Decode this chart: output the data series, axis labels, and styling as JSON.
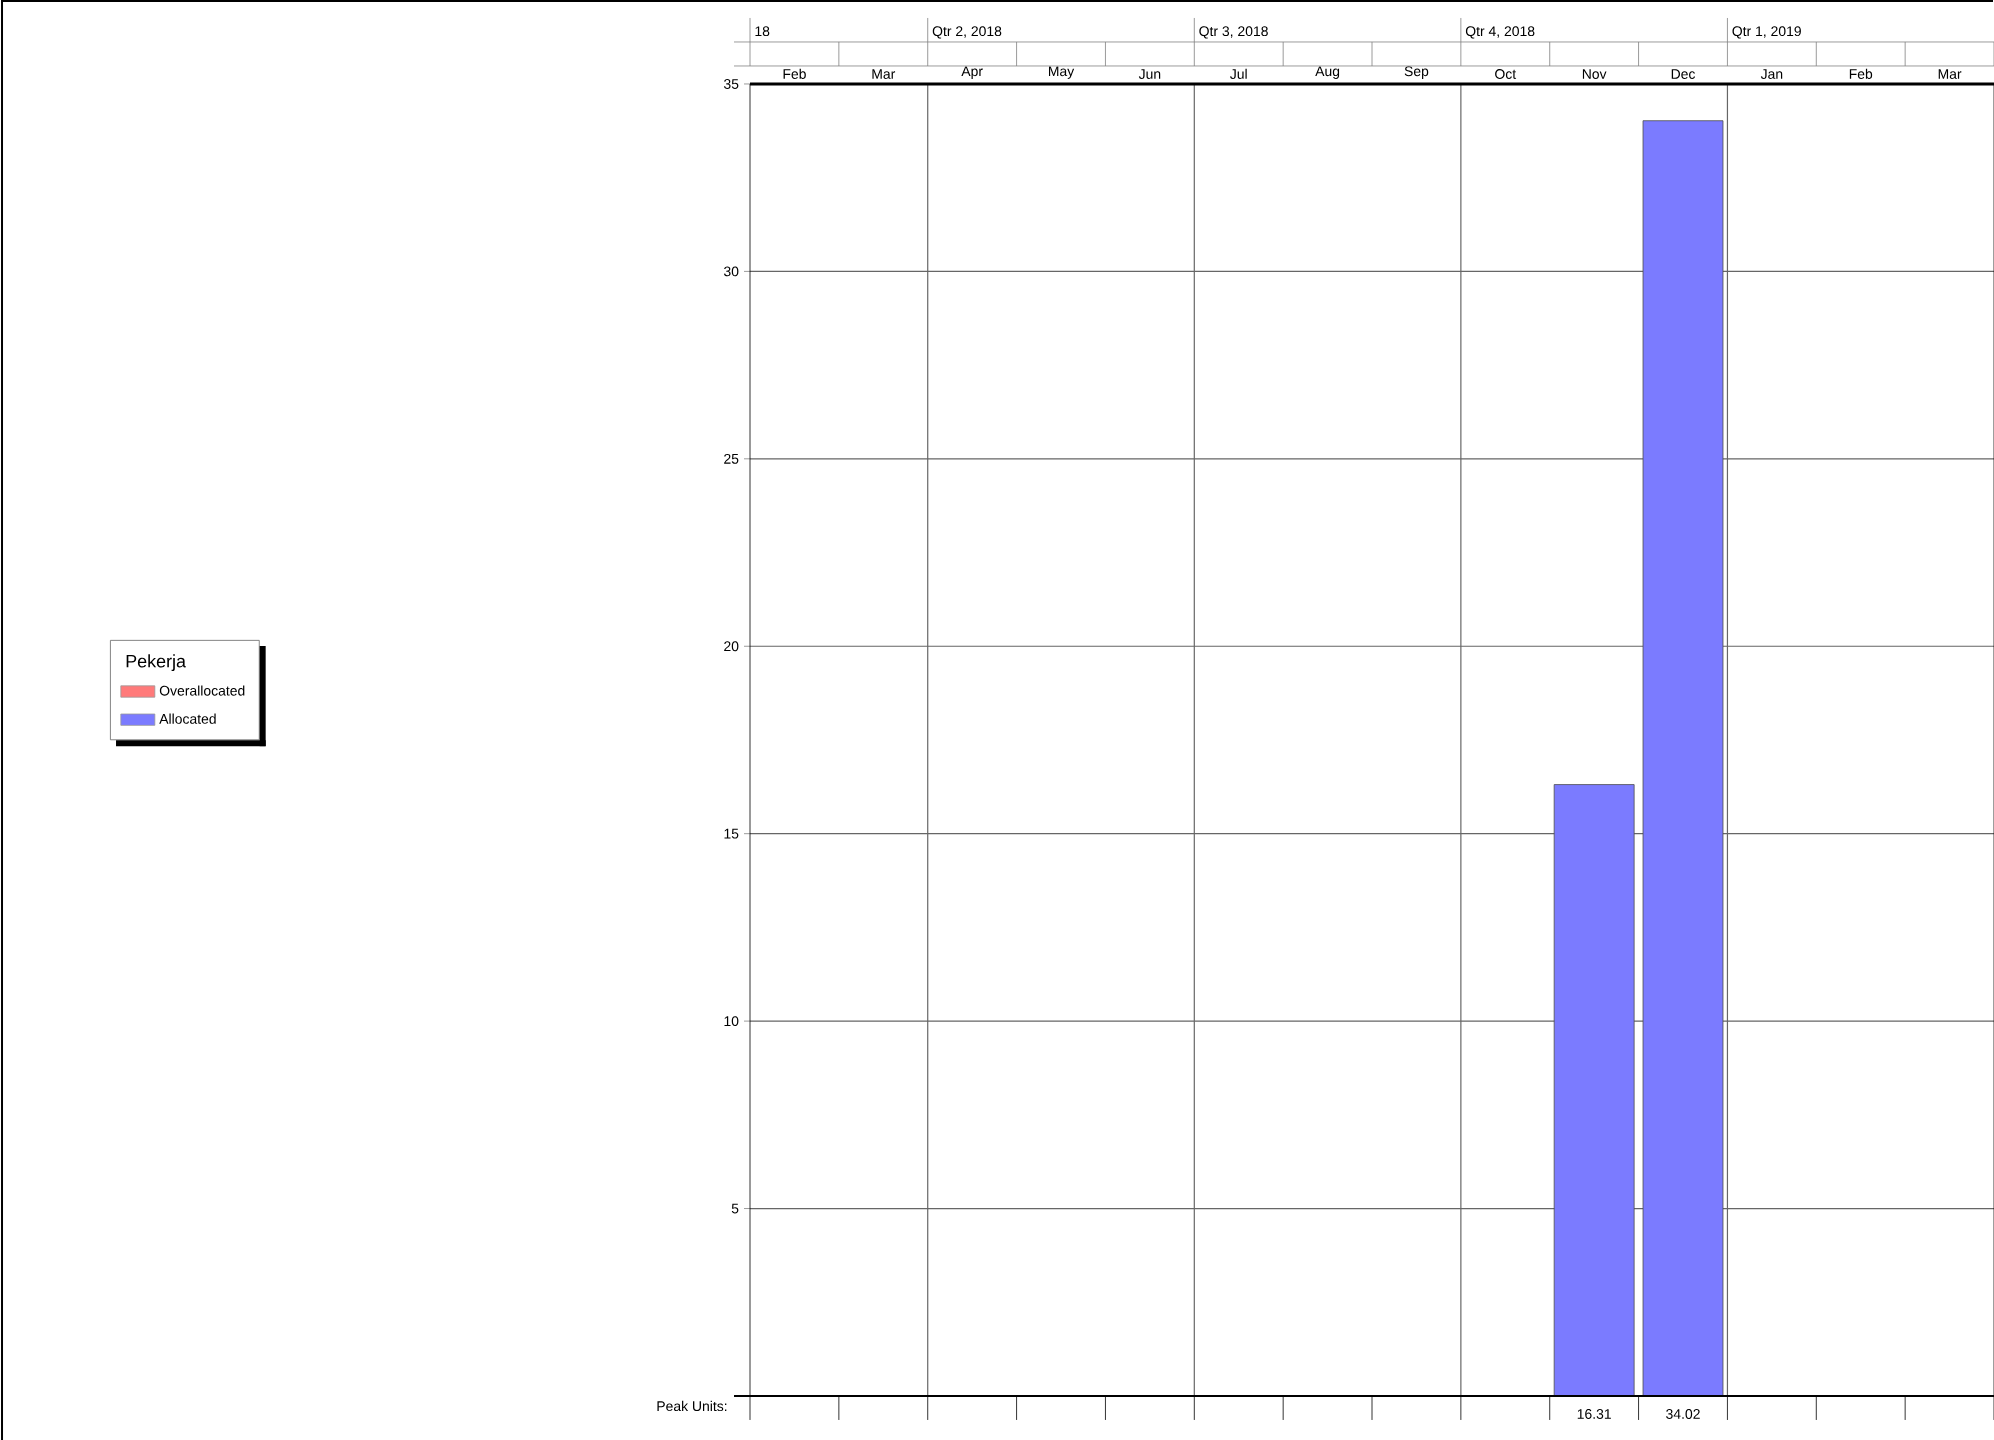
{
  "chart_data": {
    "type": "bar",
    "categories": [
      "Feb",
      "Mar",
      "Apr",
      "May",
      "Jun",
      "Jul",
      "Aug",
      "Sep",
      "Oct",
      "Nov",
      "Dec",
      "Jan",
      "Feb",
      "Mar"
    ],
    "series": [
      {
        "name": "Overallocated",
        "color": "#ff7a7a",
        "values": [
          null,
          null,
          null,
          null,
          null,
          null,
          null,
          null,
          null,
          null,
          null,
          null,
          null,
          null
        ]
      },
      {
        "name": "Allocated",
        "color": "#7b7bff",
        "values": [
          null,
          null,
          null,
          null,
          null,
          null,
          null,
          null,
          null,
          16.31,
          34.02,
          null,
          null,
          null
        ]
      }
    ],
    "legend_title": "Pekerja",
    "legend": "left",
    "data_labels": true,
    "grid": "y",
    "ylim": [
      0,
      35
    ],
    "yticks": [
      5,
      10,
      15,
      20,
      25,
      30,
      35
    ],
    "annotations": [
      "18",
      "Qtr 2, 2018",
      "Qtr 3, 2018",
      "Qtr 4, 2018",
      "Qtr 1, 2019",
      "Peak Units:"
    ]
  }
}
